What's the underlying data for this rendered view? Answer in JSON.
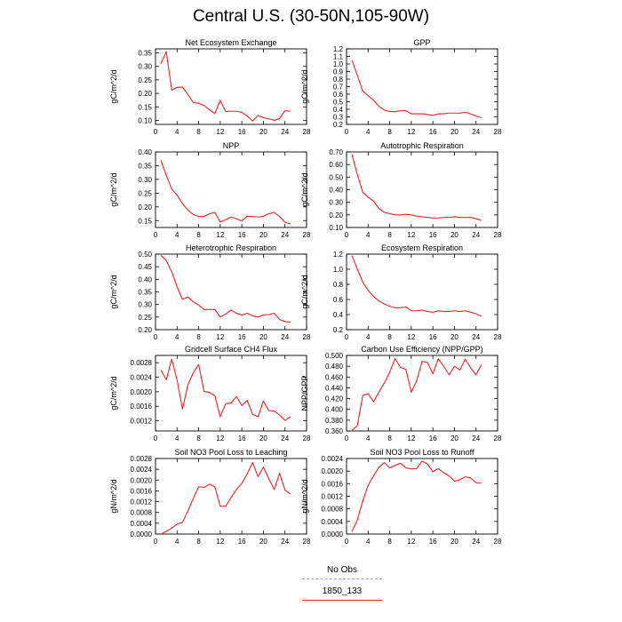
{
  "page": {
    "title": "Central U.S. (30-50N,105-90W)"
  },
  "legend": {
    "items": [
      {
        "label": "No Obs",
        "color": "#9999ee",
        "style": "dashed"
      },
      {
        "label": "1850_133",
        "color": "#ee2222",
        "style": "solid"
      }
    ]
  },
  "chart_data": [
    {
      "type": "line",
      "title": "Net Ecosystem Exchange",
      "xlabel": "",
      "ylabel": "gC/m^2/d",
      "xlim": [
        0,
        28
      ],
      "ylim": [
        0.085,
        0.365
      ],
      "xticks": [
        0,
        4,
        8,
        12,
        16,
        20,
        24,
        28
      ],
      "yticks": [
        0.1,
        0.15,
        0.2,
        0.25,
        0.3,
        0.35
      ],
      "yticklabels": [
        "0.10",
        "0.15",
        "0.20",
        "0.25",
        "0.30",
        "0.35"
      ],
      "series": [
        {
          "color": "#ee2222",
          "x": [
            1,
            2,
            3,
            4,
            5,
            6,
            7,
            8,
            9,
            10,
            11,
            12,
            13,
            14,
            15,
            16,
            17,
            18,
            19,
            20,
            21,
            22,
            23,
            24,
            25
          ],
          "y": [
            0.31,
            0.355,
            0.212,
            0.222,
            0.223,
            0.196,
            0.166,
            0.163,
            0.155,
            0.139,
            0.125,
            0.175,
            0.133,
            0.134,
            0.134,
            0.129,
            0.116,
            0.098,
            0.118,
            0.11,
            0.106,
            0.1,
            0.107,
            0.136,
            0.134
          ]
        }
      ]
    },
    {
      "type": "line",
      "title": "GPP",
      "xlabel": "",
      "ylabel": "gC/m^2/d",
      "xlim": [
        0,
        28
      ],
      "ylim": [
        0.2,
        1.2
      ],
      "xticks": [
        0,
        4,
        8,
        12,
        16,
        20,
        24,
        28
      ],
      "yticks": [
        0.2,
        0.3,
        0.4,
        0.5,
        0.6,
        0.7,
        0.8,
        0.9,
        1.0,
        1.1,
        1.2
      ],
      "yticklabels": [
        "0.2",
        "0.3",
        "0.4",
        "0.5",
        "0.6",
        "0.7",
        "0.8",
        "0.9",
        "1.0",
        "1.1",
        "1.2"
      ],
      "series": [
        {
          "color": "#ee2222",
          "x": [
            1,
            2,
            3,
            4,
            5,
            6,
            7,
            8,
            9,
            10,
            11,
            12,
            13,
            14,
            15,
            16,
            17,
            18,
            19,
            20,
            21,
            22,
            23,
            24,
            25
          ],
          "y": [
            1.05,
            0.85,
            0.64,
            0.58,
            0.52,
            0.44,
            0.39,
            0.37,
            0.37,
            0.38,
            0.38,
            0.34,
            0.34,
            0.34,
            0.33,
            0.32,
            0.34,
            0.34,
            0.35,
            0.35,
            0.35,
            0.36,
            0.34,
            0.31,
            0.29
          ]
        }
      ]
    },
    {
      "type": "line",
      "title": "NPP",
      "xlabel": "",
      "ylabel": "gC/m^2/d",
      "xlim": [
        0,
        28
      ],
      "ylim": [
        0.125,
        0.4
      ],
      "xticks": [
        0,
        4,
        8,
        12,
        16,
        20,
        24,
        28
      ],
      "yticks": [
        0.15,
        0.2,
        0.25,
        0.3,
        0.35,
        0.4
      ],
      "yticklabels": [
        "0.15",
        "0.20",
        "0.25",
        "0.30",
        "0.35",
        "0.40"
      ],
      "series": [
        {
          "color": "#ee2222",
          "x": [
            1,
            2,
            3,
            4,
            5,
            6,
            7,
            8,
            9,
            10,
            11,
            12,
            13,
            14,
            15,
            16,
            17,
            18,
            19,
            20,
            21,
            22,
            23,
            24,
            25
          ],
          "y": [
            0.37,
            0.315,
            0.265,
            0.243,
            0.212,
            0.188,
            0.172,
            0.165,
            0.165,
            0.175,
            0.18,
            0.145,
            0.153,
            0.163,
            0.157,
            0.149,
            0.166,
            0.165,
            0.163,
            0.166,
            0.175,
            0.18,
            0.165,
            0.144,
            0.138
          ]
        }
      ]
    },
    {
      "type": "line",
      "title": "Autotrophic Respiration",
      "xlabel": "",
      "ylabel": "gC/m^2/d",
      "xlim": [
        0,
        28
      ],
      "ylim": [
        0.1,
        0.7
      ],
      "xticks": [
        0,
        4,
        8,
        12,
        16,
        20,
        24,
        28
      ],
      "yticks": [
        0.1,
        0.2,
        0.3,
        0.4,
        0.5,
        0.6,
        0.7
      ],
      "yticklabels": [
        "0.10",
        "0.20",
        "0.30",
        "0.40",
        "0.50",
        "0.60",
        "0.70"
      ],
      "series": [
        {
          "color": "#ee2222",
          "x": [
            1,
            2,
            3,
            4,
            5,
            6,
            7,
            8,
            9,
            10,
            11,
            12,
            13,
            14,
            15,
            16,
            17,
            18,
            19,
            20,
            21,
            22,
            23,
            24,
            25
          ],
          "y": [
            0.68,
            0.52,
            0.38,
            0.34,
            0.31,
            0.25,
            0.22,
            0.21,
            0.2,
            0.2,
            0.205,
            0.2,
            0.19,
            0.185,
            0.18,
            0.175,
            0.175,
            0.18,
            0.18,
            0.185,
            0.18,
            0.18,
            0.18,
            0.17,
            0.155
          ]
        }
      ]
    },
    {
      "type": "line",
      "title": "Heterotrophic Respiration",
      "xlabel": "",
      "ylabel": "gC/m^2/d",
      "xlim": [
        0,
        28
      ],
      "ylim": [
        0.2,
        0.5
      ],
      "xticks": [
        0,
        4,
        8,
        12,
        16,
        20,
        24,
        28
      ],
      "yticks": [
        0.2,
        0.25,
        0.3,
        0.35,
        0.4,
        0.45,
        0.5
      ],
      "yticklabels": [
        "0.20",
        "0.25",
        "0.30",
        "0.35",
        "0.40",
        "0.45",
        "0.50"
      ],
      "series": [
        {
          "color": "#ee2222",
          "x": [
            1,
            2,
            3,
            4,
            5,
            6,
            7,
            8,
            9,
            10,
            11,
            12,
            13,
            14,
            15,
            16,
            17,
            18,
            19,
            20,
            21,
            22,
            23,
            24,
            25
          ],
          "y": [
            0.495,
            0.475,
            0.43,
            0.37,
            0.32,
            0.33,
            0.31,
            0.298,
            0.28,
            0.28,
            0.28,
            0.25,
            0.262,
            0.278,
            0.265,
            0.258,
            0.265,
            0.255,
            0.25,
            0.258,
            0.26,
            0.265,
            0.24,
            0.232,
            0.23
          ]
        }
      ]
    },
    {
      "type": "line",
      "title": "Ecosystem Respiration",
      "xlabel": "",
      "ylabel": "gC/m^2/d",
      "xlim": [
        0,
        28
      ],
      "ylim": [
        0.2,
        1.2
      ],
      "xticks": [
        0,
        4,
        8,
        12,
        16,
        20,
        24,
        28
      ],
      "yticks": [
        0.2,
        0.4,
        0.6,
        0.8,
        1.0,
        1.2
      ],
      "yticklabels": [
        "0.2",
        "0.4",
        "0.6",
        "0.8",
        "1.0",
        "1.2"
      ],
      "series": [
        {
          "color": "#ee2222",
          "x": [
            1,
            2,
            3,
            4,
            5,
            6,
            7,
            8,
            9,
            10,
            11,
            12,
            13,
            14,
            15,
            16,
            17,
            18,
            19,
            20,
            21,
            22,
            23,
            24,
            25
          ],
          "y": [
            1.18,
            1.0,
            0.83,
            0.72,
            0.64,
            0.58,
            0.54,
            0.51,
            0.49,
            0.49,
            0.5,
            0.45,
            0.45,
            0.46,
            0.44,
            0.43,
            0.45,
            0.44,
            0.44,
            0.45,
            0.44,
            0.45,
            0.43,
            0.41,
            0.38
          ]
        }
      ]
    },
    {
      "type": "line",
      "title": "Gridcell Surface CH4 Flux",
      "xlabel": "",
      "ylabel": "gC/m^2/d",
      "xlim": [
        0,
        28
      ],
      "ylim": [
        0.00092,
        0.003
      ],
      "xticks": [
        0,
        4,
        8,
        12,
        16,
        20,
        24,
        28
      ],
      "yticks": [
        0.0012,
        0.0016,
        0.002,
        0.0024,
        0.0028
      ],
      "yticklabels": [
        "0.0012",
        "0.0016",
        "0.0020",
        "0.0024",
        "0.0028"
      ],
      "series": [
        {
          "color": "#ee2222",
          "x": [
            1,
            2,
            3,
            4,
            5,
            6,
            7,
            8,
            9,
            10,
            11,
            12,
            13,
            14,
            15,
            16,
            17,
            18,
            19,
            20,
            21,
            22,
            23,
            24,
            25
          ],
          "y": [
            0.0026,
            0.00233,
            0.0029,
            0.00232,
            0.00152,
            0.00219,
            0.00252,
            0.00275,
            0.00201,
            0.00198,
            0.00189,
            0.00131,
            0.00167,
            0.00169,
            0.00187,
            0.00162,
            0.00176,
            0.00138,
            0.00131,
            0.00174,
            0.00148,
            0.00147,
            0.00136,
            0.00121,
            0.00131
          ]
        }
      ]
    },
    {
      "type": "line",
      "title": "Carbon Use Efficiency (NPP/GPP)",
      "xlabel": "",
      "ylabel": "NPP/GPP",
      "xlim": [
        0,
        28
      ],
      "ylim": [
        0.36,
        0.5
      ],
      "xticks": [
        0,
        4,
        8,
        12,
        16,
        20,
        24,
        28
      ],
      "yticks": [
        0.36,
        0.38,
        0.4,
        0.42,
        0.44,
        0.46,
        0.48,
        0.5
      ],
      "yticklabels": [
        "0.360",
        "0.380",
        "0.400",
        "0.420",
        "0.440",
        "0.460",
        "0.480",
        "0.500"
      ],
      "series": [
        {
          "color": "#ee2222",
          "x": [
            1,
            2,
            3,
            4,
            5,
            6,
            7,
            8,
            9,
            10,
            11,
            12,
            13,
            14,
            15,
            16,
            17,
            18,
            19,
            20,
            21,
            22,
            23,
            24,
            25
          ],
          "y": [
            0.361,
            0.37,
            0.426,
            0.429,
            0.414,
            0.432,
            0.449,
            0.469,
            0.494,
            0.478,
            0.474,
            0.432,
            0.453,
            0.489,
            0.487,
            0.466,
            0.494,
            0.48,
            0.464,
            0.48,
            0.473,
            0.493,
            0.477,
            0.464,
            0.483
          ]
        }
      ]
    },
    {
      "type": "line",
      "title": "Soil NO3 Pool Loss to Leaching",
      "xlabel": "",
      "ylabel": "gN/m^2/d",
      "xlim": [
        0,
        28
      ],
      "ylim": [
        0,
        0.0028
      ],
      "xticks": [
        0,
        4,
        8,
        12,
        16,
        20,
        24,
        28
      ],
      "yticks": [
        0.0,
        0.0004,
        0.0008,
        0.0012,
        0.0016,
        0.002,
        0.0024,
        0.0028
      ],
      "yticklabels": [
        "0.0000",
        "0.0004",
        "0.0008",
        "0.0012",
        "0.0016",
        "0.0020",
        "0.0024",
        "0.0028"
      ],
      "series": [
        {
          "color": "#ee2222",
          "x": [
            1,
            2,
            3,
            4,
            5,
            6,
            7,
            8,
            9,
            10,
            11,
            12,
            13,
            14,
            15,
            16,
            17,
            18,
            19,
            20,
            21,
            22,
            23,
            24,
            25
          ],
          "y": [
            0.0,
            0.0001,
            0.00022,
            0.00037,
            0.00043,
            0.00085,
            0.00132,
            0.00175,
            0.00173,
            0.00185,
            0.00175,
            0.00103,
            0.00103,
            0.00135,
            0.00165,
            0.00188,
            0.00223,
            0.00265,
            0.00213,
            0.00248,
            0.00205,
            0.00165,
            0.00225,
            0.00163,
            0.00148
          ]
        }
      ]
    },
    {
      "type": "line",
      "title": "Soil NO3 Pool Loss to Runoff",
      "xlabel": "",
      "ylabel": "gN/m^2/d",
      "xlim": [
        0,
        28
      ],
      "ylim": [
        0,
        0.0024
      ],
      "xticks": [
        0,
        4,
        8,
        12,
        16,
        20,
        24,
        28
      ],
      "yticks": [
        0.0,
        0.0004,
        0.0008,
        0.0012,
        0.0016,
        0.002,
        0.0024
      ],
      "yticklabels": [
        "0.0000",
        "0.0004",
        "0.0008",
        "0.0012",
        "0.0016",
        "0.0020",
        "0.0024"
      ],
      "series": [
        {
          "color": "#ee2222",
          "x": [
            1,
            2,
            3,
            4,
            5,
            6,
            7,
            8,
            9,
            10,
            11,
            12,
            13,
            14,
            15,
            16,
            17,
            18,
            19,
            20,
            21,
            22,
            23,
            24,
            25
          ],
          "y": [
            8e-05,
            0.00045,
            0.00105,
            0.00155,
            0.00185,
            0.00212,
            0.00227,
            0.0021,
            0.00218,
            0.00225,
            0.0021,
            0.00207,
            0.00208,
            0.00232,
            0.00222,
            0.00198,
            0.00208,
            0.00195,
            0.00185,
            0.00168,
            0.00172,
            0.00182,
            0.00178,
            0.00163,
            0.00162
          ]
        }
      ]
    }
  ]
}
